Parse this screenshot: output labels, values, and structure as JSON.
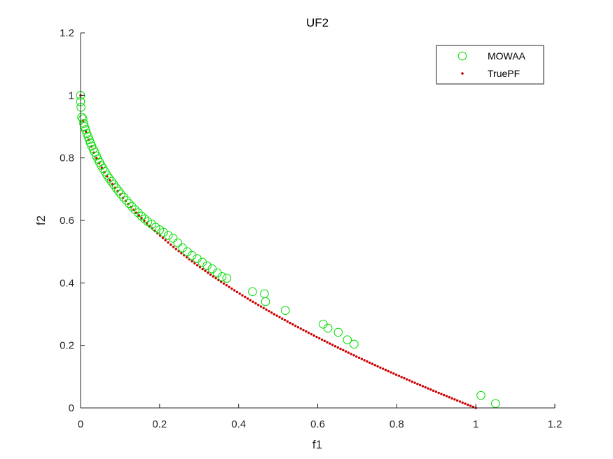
{
  "chart_data": {
    "type": "scatter",
    "title": "UF2",
    "xlabel": "f1",
    "ylabel": "f2",
    "xlim": [
      0,
      1.2
    ],
    "ylim": [
      0,
      1.2
    ],
    "xticks": [
      "0",
      "0.2",
      "0.4",
      "0.6",
      "0.8",
      "1",
      "1.2"
    ],
    "yticks": [
      "0",
      "0.2",
      "0.4",
      "0.6",
      "0.8",
      "1",
      "1.2"
    ],
    "grid": false,
    "legend_position": "top-right",
    "colors": {
      "mowaa": "#00dd00",
      "truepf": "#cc0000"
    },
    "series": [
      {
        "name": "MOWAA",
        "marker": "circle-open",
        "points": [
          [
            0.0,
            1.0
          ],
          [
            0.0,
            0.98
          ],
          [
            0.001,
            0.962
          ],
          [
            0.003,
            0.93
          ],
          [
            0.006,
            0.925
          ],
          [
            0.008,
            0.91
          ],
          [
            0.01,
            0.9
          ],
          [
            0.013,
            0.89
          ],
          [
            0.016,
            0.878
          ],
          [
            0.019,
            0.868
          ],
          [
            0.022,
            0.858
          ],
          [
            0.025,
            0.848
          ],
          [
            0.028,
            0.838
          ],
          [
            0.032,
            0.828
          ],
          [
            0.036,
            0.818
          ],
          [
            0.04,
            0.806
          ],
          [
            0.044,
            0.796
          ],
          [
            0.048,
            0.786
          ],
          [
            0.052,
            0.776
          ],
          [
            0.057,
            0.766
          ],
          [
            0.062,
            0.756
          ],
          [
            0.067,
            0.745
          ],
          [
            0.072,
            0.735
          ],
          [
            0.078,
            0.725
          ],
          [
            0.084,
            0.715
          ],
          [
            0.09,
            0.704
          ],
          [
            0.096,
            0.694
          ],
          [
            0.102,
            0.684
          ],
          [
            0.109,
            0.674
          ],
          [
            0.116,
            0.664
          ],
          [
            0.123,
            0.654
          ],
          [
            0.13,
            0.644
          ],
          [
            0.138,
            0.634
          ],
          [
            0.146,
            0.624
          ],
          [
            0.154,
            0.614
          ],
          [
            0.162,
            0.605
          ],
          [
            0.17,
            0.596
          ],
          [
            0.18,
            0.588
          ],
          [
            0.19,
            0.578
          ],
          [
            0.2,
            0.57
          ],
          [
            0.21,
            0.562
          ],
          [
            0.222,
            0.552
          ],
          [
            0.234,
            0.543
          ],
          [
            0.246,
            0.528
          ],
          [
            0.258,
            0.512
          ],
          [
            0.27,
            0.5
          ],
          [
            0.282,
            0.488
          ],
          [
            0.295,
            0.478
          ],
          [
            0.308,
            0.466
          ],
          [
            0.32,
            0.455
          ],
          [
            0.333,
            0.445
          ],
          [
            0.346,
            0.432
          ],
          [
            0.358,
            0.42
          ],
          [
            0.37,
            0.415
          ],
          [
            0.435,
            0.372
          ],
          [
            0.465,
            0.365
          ],
          [
            0.468,
            0.34
          ],
          [
            0.518,
            0.312
          ],
          [
            0.614,
            0.268
          ],
          [
            0.626,
            0.255
          ],
          [
            0.652,
            0.242
          ],
          [
            0.675,
            0.218
          ],
          [
            0.692,
            0.204
          ],
          [
            1.013,
            0.04
          ],
          [
            1.05,
            0.014
          ]
        ]
      },
      {
        "name": "TruePF",
        "marker": "dot",
        "function": "f2 = 1 - sqrt(f1)",
        "x_range": [
          0,
          1
        ],
        "n_points": 150
      }
    ]
  }
}
